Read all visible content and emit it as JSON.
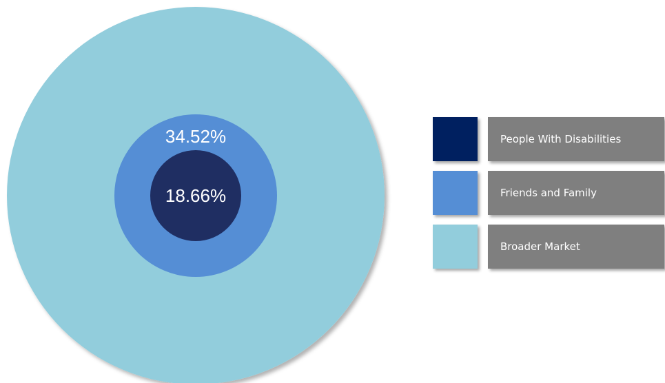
{
  "chart_data": {
    "type": "nested-circle",
    "series": [
      {
        "name": "Broader Market",
        "value": 100,
        "label": "",
        "color": "#92cddc"
      },
      {
        "name": "Friends and Family",
        "value": 34.52,
        "label": "34.52%",
        "color": "#558ed5"
      },
      {
        "name": "People With Disabilities",
        "value": 18.66,
        "label": "18.66%",
        "color": "#1f2e62"
      }
    ]
  },
  "legend": {
    "items": [
      {
        "label": "People With Disabilities",
        "color": "#002060"
      },
      {
        "label": "Friends and Family",
        "color": "#558ed5"
      },
      {
        "label": "Broader Market",
        "color": "#92cddc"
      }
    ]
  }
}
